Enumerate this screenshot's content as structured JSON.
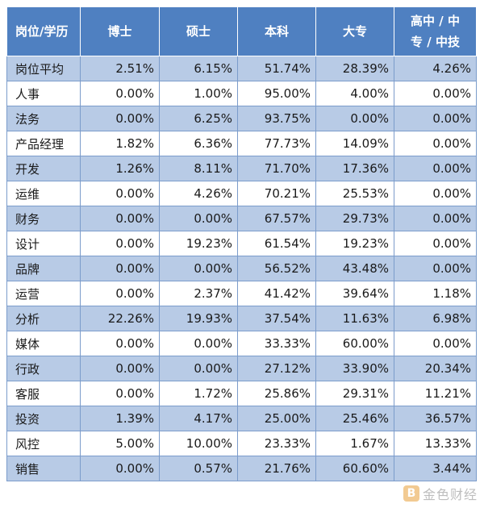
{
  "table": {
    "headers": [
      "岗位/学历",
      "博士",
      "硕士",
      "本科",
      "大专",
      "高中 / 中\n专 / 中技"
    ],
    "rows": [
      [
        "岗位平均",
        "2.51%",
        "6.15%",
        "51.74%",
        "28.39%",
        "4.26%"
      ],
      [
        "人事",
        "0.00%",
        "1.00%",
        "95.00%",
        "4.00%",
        "0.00%"
      ],
      [
        "法务",
        "0.00%",
        "6.25%",
        "93.75%",
        "0.00%",
        "0.00%"
      ],
      [
        "产品经理",
        "1.82%",
        "6.36%",
        "77.73%",
        "14.09%",
        "0.00%"
      ],
      [
        "开发",
        "1.26%",
        "8.11%",
        "71.70%",
        "17.36%",
        "0.00%"
      ],
      [
        "运维",
        "0.00%",
        "4.26%",
        "70.21%",
        "25.53%",
        "0.00%"
      ],
      [
        "财务",
        "0.00%",
        "0.00%",
        "67.57%",
        "29.73%",
        "0.00%"
      ],
      [
        "设计",
        "0.00%",
        "19.23%",
        "61.54%",
        "19.23%",
        "0.00%"
      ],
      [
        "品牌",
        "0.00%",
        "0.00%",
        "56.52%",
        "43.48%",
        "0.00%"
      ],
      [
        "运营",
        "0.00%",
        "2.37%",
        "41.42%",
        "39.64%",
        "1.18%"
      ],
      [
        "分析",
        "22.26%",
        "19.93%",
        "37.54%",
        "11.63%",
        "6.98%"
      ],
      [
        "媒体",
        "0.00%",
        "0.00%",
        "33.33%",
        "60.00%",
        "0.00%"
      ],
      [
        "行政",
        "0.00%",
        "0.00%",
        "27.12%",
        "33.90%",
        "20.34%"
      ],
      [
        "客服",
        "0.00%",
        "1.72%",
        "25.86%",
        "29.31%",
        "11.21%"
      ],
      [
        "投资",
        "1.39%",
        "4.17%",
        "25.00%",
        "25.46%",
        "36.57%"
      ],
      [
        "风控",
        "5.00%",
        "10.00%",
        "23.33%",
        "1.67%",
        "13.33%"
      ],
      [
        "销售",
        "0.00%",
        "0.57%",
        "21.76%",
        "60.60%",
        "3.44%"
      ]
    ]
  },
  "watermark": {
    "logo_char": "B",
    "text": "金色财经"
  },
  "colors": {
    "header_bg": "#4f80c1",
    "alt_row_bg": "#b8cbe6",
    "border": "#7b9ccb"
  }
}
